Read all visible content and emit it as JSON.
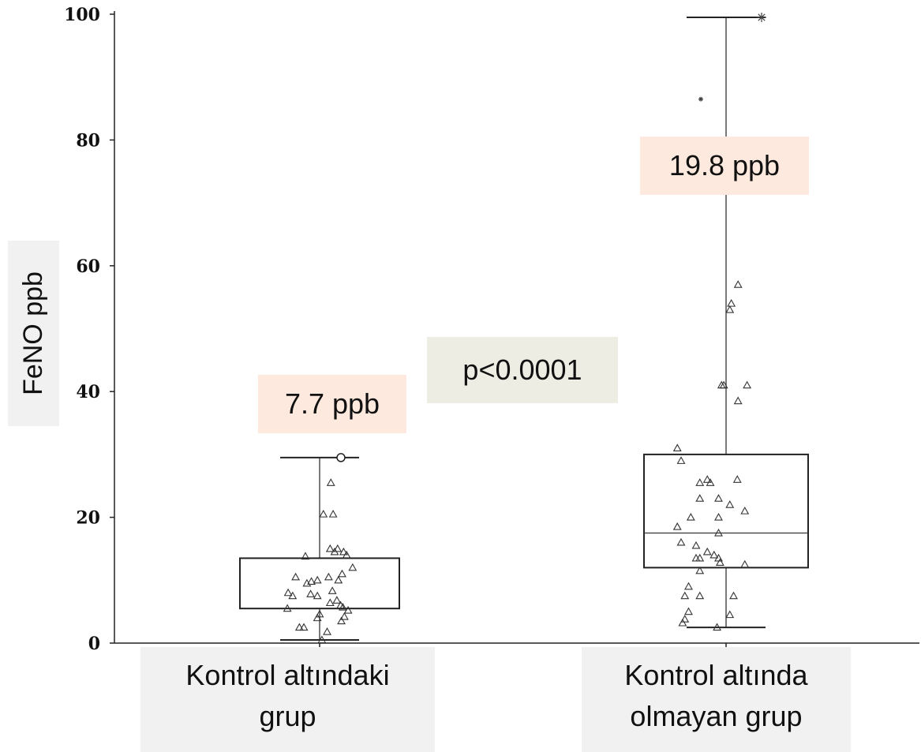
{
  "chart_data": {
    "type": "box",
    "ylabel": "FeNO ppb",
    "ylim": [
      0,
      100
    ],
    "yticks": [
      0,
      20,
      40,
      60,
      80,
      100
    ],
    "categories": [
      "Kontrol altındaki grup",
      "Kontrol altında olmayan grup"
    ],
    "category_lines": [
      [
        "Kontrol altındaki",
        "grup"
      ],
      [
        "Kontrol altında",
        "olmayan grup"
      ]
    ],
    "boxes": [
      {
        "name": "Kontrol altındaki grup",
        "whisker_low": 0.5,
        "q1": 5.5,
        "q3": 13.5,
        "whisker_high": 29.5,
        "median_label": "7.7 ppb",
        "outliers": [
          {
            "y": 29.5,
            "marker": "circle"
          }
        ]
      },
      {
        "name": "Kontrol altında olmayan grup",
        "whisker_low": 2.5,
        "q1": 12,
        "median": 17.5,
        "q3": 30,
        "whisker_high": 99.5,
        "median_label": "19.8 ppb",
        "outliers": [
          {
            "y": 99.5,
            "marker": "star"
          },
          {
            "y": 86.5,
            "marker": "star"
          }
        ]
      }
    ],
    "points": [
      [
        [
          1.5,
          25.5
        ],
        [
          0.5,
          20.5
        ],
        [
          1.8,
          20.5
        ],
        [
          1.4,
          15
        ],
        [
          2.4,
          15
        ],
        [
          2.0,
          14.5
        ],
        [
          3.2,
          14.5
        ],
        [
          3.6,
          14
        ],
        [
          -1.9,
          13.8
        ],
        [
          4.4,
          12
        ],
        [
          -3.2,
          10.5
        ],
        [
          1.2,
          10.5
        ],
        [
          3.0,
          11
        ],
        [
          -1.1,
          9.8
        ],
        [
          -0.3,
          10
        ],
        [
          -1.7,
          9.5
        ],
        [
          2.5,
          10
        ],
        [
          -4.2,
          8
        ],
        [
          -3.6,
          7.5
        ],
        [
          -1.2,
          7.8
        ],
        [
          -0.3,
          7.5
        ],
        [
          1.7,
          8.3
        ],
        [
          2.3,
          6.8
        ],
        [
          1.4,
          6.4
        ],
        [
          2.8,
          6.0
        ],
        [
          3.1,
          5.7
        ],
        [
          -4.3,
          5.5
        ],
        [
          3.8,
          5.2
        ],
        [
          0.0,
          4.6
        ],
        [
          -0.3,
          4.0
        ],
        [
          3.3,
          4.2
        ],
        [
          2.9,
          3.5
        ],
        [
          -2.7,
          2.5
        ],
        [
          -2.1,
          2.5
        ],
        [
          1.0,
          1.8
        ],
        [
          0.3,
          0.5
        ]
      ],
      [
        [
          1.6,
          57
        ],
        [
          0.7,
          54
        ],
        [
          0.5,
          53
        ],
        [
          -0.6,
          41
        ],
        [
          -0.3,
          41
        ],
        [
          2.8,
          41
        ],
        [
          1.6,
          38.5
        ],
        [
          -6.5,
          31
        ],
        [
          -6.0,
          29
        ],
        [
          -2.5,
          26
        ],
        [
          -2.1,
          25.5
        ],
        [
          -3.5,
          25.5
        ],
        [
          1.5,
          26
        ],
        [
          -1.0,
          23
        ],
        [
          -3.5,
          23
        ],
        [
          0.5,
          22
        ],
        [
          2.5,
          21
        ],
        [
          -4.7,
          20
        ],
        [
          -1.0,
          20
        ],
        [
          -6.5,
          18.5
        ],
        [
          -1.0,
          17.5
        ],
        [
          -6.0,
          16
        ],
        [
          -4.0,
          15.5
        ],
        [
          -2.5,
          14.5
        ],
        [
          -1.6,
          14
        ],
        [
          -4.0,
          13.5
        ],
        [
          -3.5,
          13.5
        ],
        [
          -1.0,
          13.5
        ],
        [
          -0.8,
          12.8
        ],
        [
          2.5,
          12.5
        ],
        [
          -3.5,
          11.5
        ],
        [
          -5.0,
          9
        ],
        [
          -5.5,
          7.5
        ],
        [
          -3.5,
          7.5
        ],
        [
          1.0,
          7.5
        ],
        [
          -5.0,
          5
        ],
        [
          0.5,
          4.5
        ],
        [
          -5.5,
          3.8
        ],
        [
          -5.8,
          3.2
        ],
        [
          -1.2,
          2.5
        ]
      ]
    ],
    "annotation": "p<0.0001"
  }
}
